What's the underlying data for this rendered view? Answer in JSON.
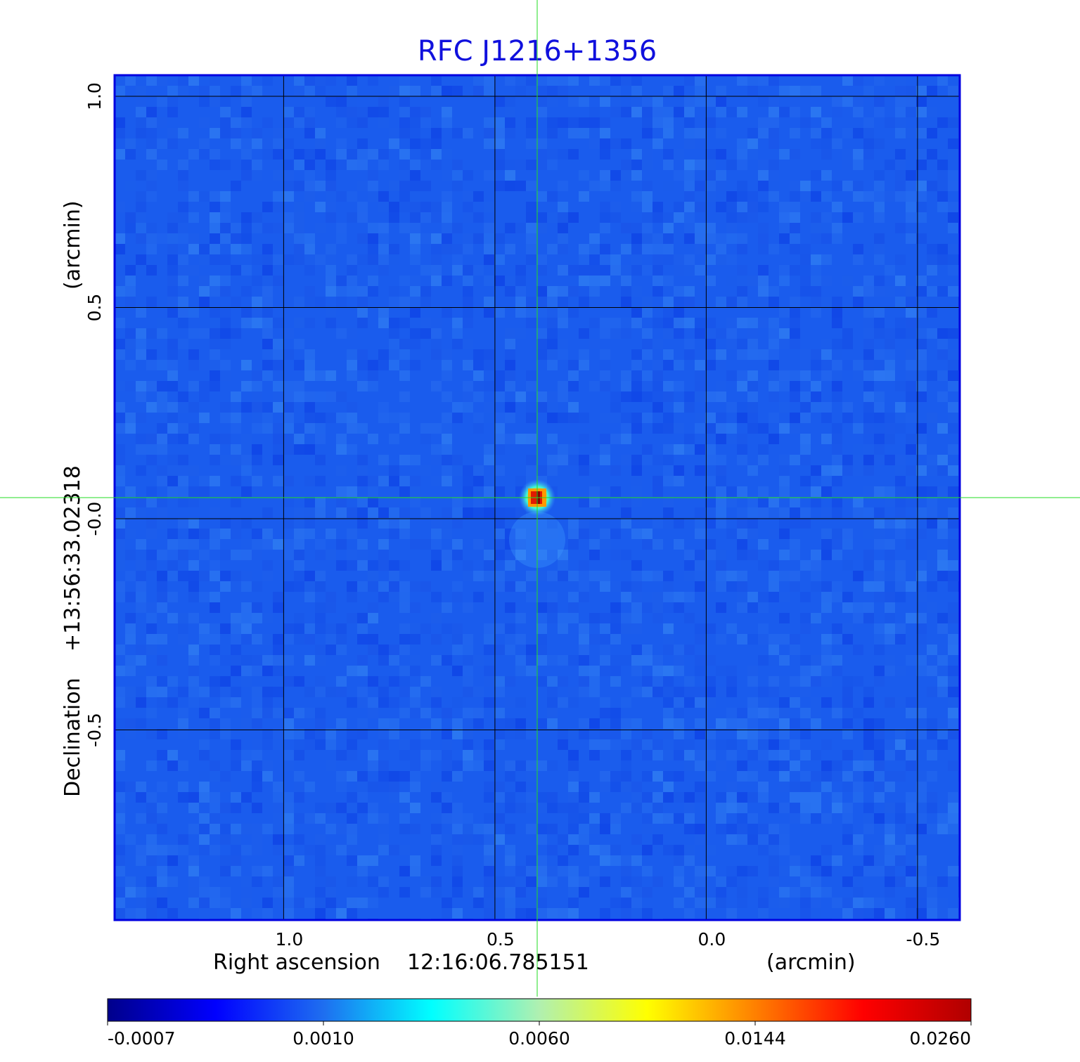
{
  "chart_data": {
    "type": "heatmap",
    "title": "RFC J1216+1356",
    "xlabel": {
      "prefix": "Right ascension",
      "center": "12:16:06.785151",
      "unit": "(arcmin)"
    },
    "ylabel": {
      "prefix": "Declination",
      "center": "+13:56:33.02318",
      "unit": "(arcmin)"
    },
    "x_axis_reversed": true,
    "xlim": [
      1.4,
      -0.6
    ],
    "ylim": [
      -0.95,
      1.05
    ],
    "x_ticks": [
      {
        "value": 1.0,
        "label": "1.0"
      },
      {
        "value": 0.5,
        "label": "0.5"
      },
      {
        "value": 0.0,
        "label": "0.0"
      },
      {
        "value": -0.5,
        "label": "-0.5"
      }
    ],
    "y_ticks": [
      {
        "value": 1.0,
        "label": "1.0"
      },
      {
        "value": 0.5,
        "label": "0.5"
      },
      {
        "value": 0.0,
        "label": "-0.0"
      },
      {
        "value": -0.5,
        "label": "-0.5"
      }
    ],
    "grid": true,
    "crosshair": {
      "x": 0.4,
      "y": 0.05,
      "color": "#22dd22"
    },
    "sources": [
      {
        "x": 0.4,
        "y": 0.05,
        "peak": 0.026
      }
    ],
    "colormap": "jet",
    "colorbar": {
      "orientation": "horizontal",
      "position": "bottom",
      "tick_labels": [
        "-0.0007",
        "0.0010",
        "0.0060",
        "0.0144",
        "0.0260"
      ],
      "stops": [
        "#00008b",
        "#0000ff",
        "#1e6ef0",
        "#00ffff",
        "#b0f0b0",
        "#ffff00",
        "#ff8000",
        "#ff0000",
        "#b00000"
      ]
    },
    "background_color": "#1a5ced",
    "border_color": "#0000e0"
  }
}
